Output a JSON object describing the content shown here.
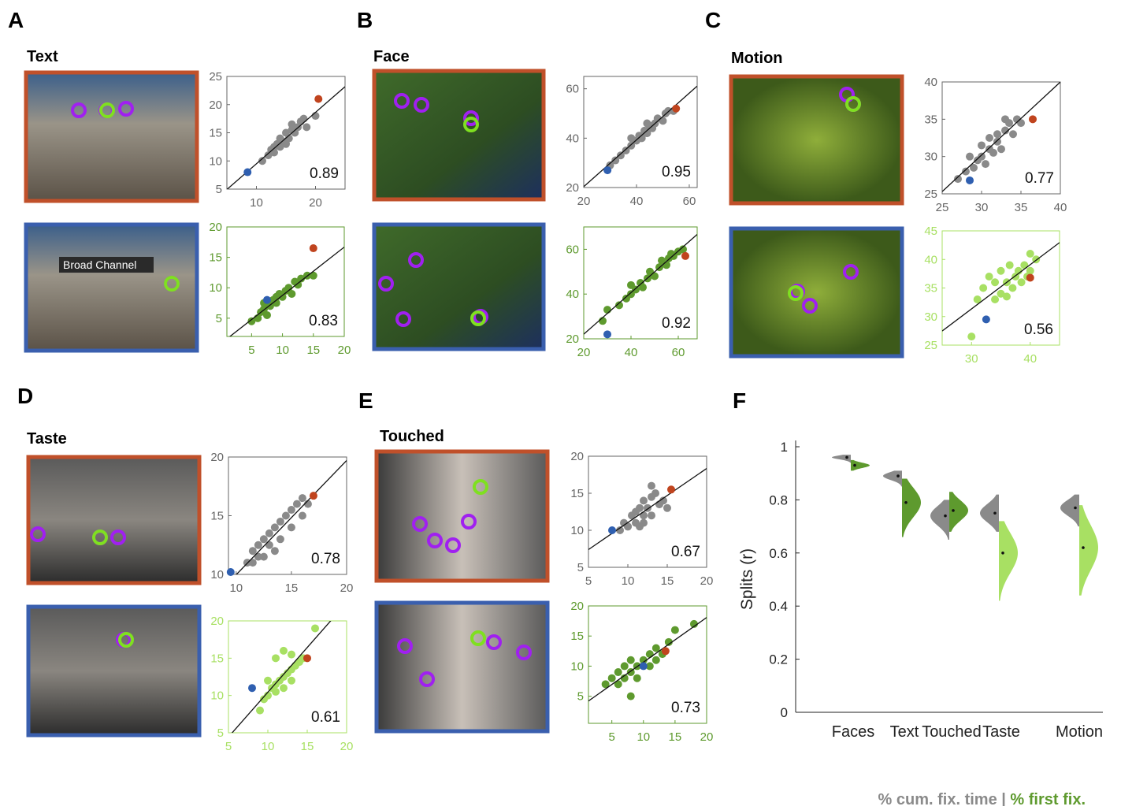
{
  "panels": [
    {
      "letter": "A",
      "title": "Text"
    },
    {
      "letter": "B",
      "title": "Face"
    },
    {
      "letter": "C",
      "title": "Motion"
    },
    {
      "letter": "D",
      "title": "Taste"
    },
    {
      "letter": "E",
      "title": "Touched"
    },
    {
      "letter": "F"
    }
  ],
  "photo_text": "Broad Channel",
  "chart_data": [
    {
      "type": "scatter",
      "frame_color": "#c0502a",
      "axis_color": "#666666",
      "color": "#8a8a8a",
      "xlim": [
        5,
        25
      ],
      "ylim": [
        5,
        25
      ],
      "xticks": [
        10,
        20
      ],
      "yticks": [
        5,
        10,
        15,
        20,
        25
      ],
      "x": [
        11,
        12,
        12.5,
        13,
        13.5,
        14,
        14,
        14.5,
        15,
        15.5,
        16,
        16,
        16.5,
        17,
        17.5,
        18,
        18.5,
        13,
        15,
        20
      ],
      "y": [
        10,
        11,
        12,
        11.5,
        13,
        12.5,
        14,
        13.5,
        15,
        14,
        15.5,
        16.5,
        15,
        16,
        17,
        17.5,
        16,
        12.5,
        13,
        18
      ],
      "high": {
        "x": 20.5,
        "y": 21,
        "color": "#c0441e"
      },
      "low": {
        "x": 8.5,
        "y": 8,
        "color": "#2f5fb0"
      },
      "r": 0.89
    },
    {
      "type": "scatter",
      "frame_color": "#3a5fae",
      "axis_color": "#5e9a2e",
      "color": "#5e9a2e",
      "xlim": [
        1,
        20
      ],
      "ylim": [
        2,
        20
      ],
      "xticks": [
        5,
        10,
        15,
        20
      ],
      "yticks": [
        5,
        10,
        15,
        20
      ],
      "x": [
        5,
        6,
        6.5,
        7,
        7.5,
        8,
        8.5,
        9,
        9.5,
        10,
        10.5,
        11,
        11.5,
        12,
        12.5,
        13,
        14,
        9,
        7,
        15
      ],
      "y": [
        4.5,
        5,
        6,
        6.5,
        5.5,
        7,
        8,
        7.5,
        9,
        8.5,
        9.5,
        10,
        9,
        11,
        10.5,
        11.5,
        12,
        8.5,
        7.5,
        12
      ],
      "high": {
        "x": 15,
        "y": 16.5,
        "color": "#c0441e"
      },
      "low": {
        "x": 7.5,
        "y": 8,
        "color": "#2f5fb0"
      },
      "r": 0.83
    },
    {
      "type": "scatter",
      "frame_color": "#c0502a",
      "axis_color": "#666666",
      "color": "#8a8a8a",
      "xlim": [
        20,
        63
      ],
      "ylim": [
        20,
        65
      ],
      "xticks": [
        20,
        40,
        60
      ],
      "yticks": [
        20,
        40,
        60
      ],
      "x": [
        30,
        32,
        34,
        36,
        38,
        40,
        41,
        42,
        43,
        44,
        45,
        46,
        47,
        48,
        50,
        51,
        52,
        38,
        44,
        54
      ],
      "y": [
        29,
        31,
        33,
        35,
        37,
        39,
        41,
        40,
        43,
        42,
        45,
        44,
        46,
        48,
        47,
        50,
        51,
        40,
        46,
        51
      ],
      "high": {
        "x": 55,
        "y": 52,
        "color": "#c0441e"
      },
      "low": {
        "x": 29,
        "y": 27,
        "color": "#2f5fb0"
      },
      "r": 0.95
    },
    {
      "type": "scatter",
      "frame_color": "#3a5fae",
      "axis_color": "#5e9a2e",
      "color": "#5e9a2e",
      "xlim": [
        20,
        68
      ],
      "ylim": [
        20,
        70
      ],
      "xticks": [
        20,
        40,
        60
      ],
      "yticks": [
        20,
        40,
        60
      ],
      "x": [
        28,
        30,
        35,
        38,
        40,
        42,
        44,
        45,
        47,
        48,
        50,
        52,
        53,
        55,
        56,
        57,
        58,
        60,
        62,
        40
      ],
      "y": [
        28,
        33,
        35,
        38,
        40,
        42,
        45,
        43,
        47,
        50,
        48,
        52,
        55,
        53,
        56,
        58,
        57,
        59,
        60,
        44
      ],
      "high": {
        "x": 63,
        "y": 57,
        "color": "#c0441e"
      },
      "low": {
        "x": 30,
        "y": 22,
        "color": "#2f5fb0"
      },
      "r": 0.92
    },
    {
      "type": "scatter",
      "frame_color": "#c0502a",
      "axis_color": "#666666",
      "color": "#8a8a8a",
      "xlim": [
        25,
        40
      ],
      "ylim": [
        25,
        40
      ],
      "xticks": [
        25,
        30,
        35,
        40
      ],
      "yticks": [
        25,
        30,
        35,
        40
      ],
      "x": [
        27,
        28,
        29,
        29.5,
        30,
        30.5,
        31,
        31.5,
        32,
        32,
        32.5,
        33,
        33.5,
        34,
        34.5,
        30,
        31,
        28.5,
        35,
        33
      ],
      "y": [
        27,
        28,
        28.5,
        29.5,
        30,
        29,
        31,
        30.5,
        32,
        33,
        31,
        33.5,
        34.5,
        33,
        35,
        31.5,
        32.5,
        30,
        34.5,
        35
      ],
      "high": {
        "x": 36.5,
        "y": 35,
        "color": "#c0441e"
      },
      "low": {
        "x": 28.5,
        "y": 26.8,
        "color": "#2f5fb0"
      },
      "r": 0.77
    },
    {
      "type": "scatter",
      "frame_color": "#3a5fae",
      "axis_color": "#a8e063",
      "color": "#a8e063",
      "xlim": [
        25,
        45
      ],
      "ylim": [
        25,
        45
      ],
      "xticks": [
        30,
        40
      ],
      "yticks": [
        25,
        30,
        35,
        40,
        45
      ],
      "x": [
        31,
        32,
        33,
        34,
        35,
        35,
        36,
        36.5,
        37,
        37.5,
        38,
        38.5,
        39,
        39.5,
        40,
        40,
        41,
        34,
        36,
        30
      ],
      "y": [
        33,
        35,
        37,
        36,
        34,
        38,
        36,
        39,
        35,
        37,
        38,
        36,
        39,
        37,
        41,
        38,
        40,
        33,
        33.5,
        26.5
      ],
      "high": {
        "x": 40,
        "y": 36.8,
        "color": "#c0441e"
      },
      "low": {
        "x": 32.5,
        "y": 29.5,
        "color": "#2f5fb0"
      },
      "r": 0.56
    },
    {
      "type": "scatter",
      "frame_color": "#c0502a",
      "axis_color": "#666666",
      "color": "#8a8a8a",
      "xlim": [
        9.3,
        20
      ],
      "ylim": [
        10,
        20
      ],
      "xticks": [
        10,
        15,
        20
      ],
      "yticks": [
        10,
        15,
        20
      ],
      "x": [
        11,
        11.5,
        12,
        12,
        12.5,
        13,
        13,
        13.5,
        14,
        14,
        14.5,
        15,
        15,
        15.5,
        16,
        16,
        16.5,
        12.5,
        13.5,
        11.5
      ],
      "y": [
        11,
        12,
        12.5,
        11.5,
        13,
        13.5,
        12.5,
        14,
        14.5,
        13,
        15,
        15.5,
        14,
        16,
        15,
        16.5,
        16,
        11.5,
        12,
        11
      ],
      "high": {
        "x": 17,
        "y": 16.7,
        "color": "#c0441e"
      },
      "low": {
        "x": 9.5,
        "y": 10.2,
        "color": "#2f5fb0"
      },
      "r": 0.78
    },
    {
      "type": "scatter",
      "frame_color": "#3a5fae",
      "axis_color": "#a8e063",
      "color": "#a8e063",
      "xlim": [
        5,
        20
      ],
      "ylim": [
        5,
        20
      ],
      "xticks": [
        5,
        10,
        15,
        20
      ],
      "yticks": [
        5,
        10,
        15,
        20
      ],
      "x": [
        9,
        9.5,
        10,
        10.5,
        11,
        11,
        11.5,
        12,
        12,
        12.5,
        13,
        13,
        13.5,
        14,
        14.5,
        11,
        12,
        13,
        10,
        16
      ],
      "y": [
        8,
        9.5,
        10,
        11,
        11.5,
        10.5,
        12,
        12.5,
        11,
        13,
        13.5,
        12,
        14,
        14.5,
        15,
        15,
        16,
        15.5,
        12,
        19
      ],
      "high": {
        "x": 15,
        "y": 15,
        "color": "#c0441e"
      },
      "low": {
        "x": 8,
        "y": 11,
        "color": "#2f5fb0"
      },
      "r": 0.61
    },
    {
      "type": "scatter",
      "frame_color": "#c0502a",
      "axis_color": "#666666",
      "color": "#8a8a8a",
      "xlim": [
        5,
        20
      ],
      "ylim": [
        5,
        20
      ],
      "xticks": [
        5,
        10,
        15,
        20
      ],
      "yticks": [
        5,
        10,
        15,
        20
      ],
      "x": [
        9,
        9.5,
        10,
        10.5,
        11,
        11,
        11.5,
        12,
        12,
        12.5,
        13,
        13,
        13.5,
        14,
        14.5,
        15,
        12,
        10,
        13,
        11.5
      ],
      "y": [
        10,
        11,
        10.5,
        12,
        11,
        12.5,
        13,
        12,
        14,
        13,
        14.5,
        12,
        15,
        13.5,
        14,
        13,
        11,
        10.5,
        16,
        10.5
      ],
      "high": {
        "x": 15.5,
        "y": 15.5,
        "color": "#c0441e"
      },
      "low": {
        "x": 8,
        "y": 10,
        "color": "#2f5fb0"
      },
      "r": 0.67
    },
    {
      "type": "scatter",
      "frame_color": "#3a5fae",
      "axis_color": "#5e9a2e",
      "color": "#5e9a2e",
      "xlim": [
        1.3,
        20
      ],
      "ylim": [
        0.5,
        20
      ],
      "xticks": [
        5,
        10,
        15,
        20
      ],
      "yticks": [
        5,
        10,
        15,
        20
      ],
      "x": [
        4,
        5,
        6,
        6,
        7,
        7,
        8,
        8,
        9,
        9,
        10,
        11,
        11,
        12,
        12,
        13,
        14,
        15,
        8,
        18
      ],
      "y": [
        7,
        8,
        9,
        7,
        8,
        10,
        9,
        11,
        10,
        8,
        11,
        12,
        10,
        13,
        11,
        12,
        14,
        16,
        5,
        17
      ],
      "high": {
        "x": 13.5,
        "y": 12.5,
        "color": "#c0441e"
      },
      "low": {
        "x": 10,
        "y": 10,
        "color": "#2f5fb0"
      },
      "r": 0.73
    },
    {
      "type": "violin",
      "ylabel": "Splits (r)",
      "ylim": [
        0,
        1
      ],
      "yticks": [
        0,
        0.2,
        0.4,
        0.6,
        0.8,
        1
      ],
      "categories": [
        "Faces",
        "Text",
        "Touched",
        "Taste",
        "Motion"
      ],
      "series": [
        {
          "name": "% cum. fix. time",
          "color": "#8a8a8a",
          "colors": [
            "#8a8a8a",
            "#8a8a8a",
            "#8a8a8a",
            "#8a8a8a",
            "#8a8a8a"
          ],
          "values": [
            0.96,
            0.89,
            0.74,
            0.75,
            0.77
          ],
          "ranges": [
            [
              0.94,
              0.97
            ],
            [
              0.85,
              0.91
            ],
            [
              0.65,
              0.8
            ],
            [
              0.68,
              0.82
            ],
            [
              0.7,
              0.82
            ]
          ]
        },
        {
          "name": "% first fix.",
          "color": "#5e9a2e",
          "colors": [
            "#5e9a2e",
            "#5e9a2e",
            "#5e9a2e",
            "#a8e063",
            "#a8e063"
          ],
          "values": [
            0.93,
            0.79,
            0.76,
            0.6,
            0.62
          ],
          "ranges": [
            [
              0.91,
              0.95
            ],
            [
              0.66,
              0.88
            ],
            [
              0.68,
              0.83
            ],
            [
              0.42,
              0.72
            ],
            [
              0.44,
              0.78
            ]
          ]
        }
      ],
      "legend_separator": " | "
    }
  ]
}
